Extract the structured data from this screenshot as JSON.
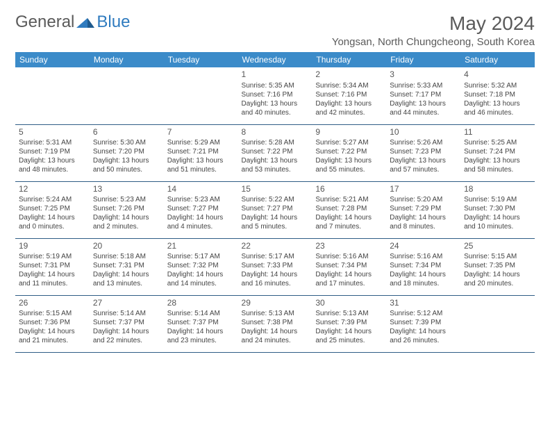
{
  "logo": {
    "word1": "General",
    "word2": "Blue"
  },
  "title": "May 2024",
  "location": "Yongsan, North Chungcheong, South Korea",
  "colors": {
    "header_bg": "#3b8bc9",
    "header_text": "#ffffff",
    "border": "#2e5c85",
    "text": "#444444",
    "title_text": "#5a5a5a"
  },
  "day_headers": [
    "Sunday",
    "Monday",
    "Tuesday",
    "Wednesday",
    "Thursday",
    "Friday",
    "Saturday"
  ],
  "weeks": [
    [
      null,
      null,
      null,
      {
        "n": "1",
        "sr": "5:35 AM",
        "ss": "7:16 PM",
        "dl": "13 hours and 40 minutes."
      },
      {
        "n": "2",
        "sr": "5:34 AM",
        "ss": "7:16 PM",
        "dl": "13 hours and 42 minutes."
      },
      {
        "n": "3",
        "sr": "5:33 AM",
        "ss": "7:17 PM",
        "dl": "13 hours and 44 minutes."
      },
      {
        "n": "4",
        "sr": "5:32 AM",
        "ss": "7:18 PM",
        "dl": "13 hours and 46 minutes."
      }
    ],
    [
      {
        "n": "5",
        "sr": "5:31 AM",
        "ss": "7:19 PM",
        "dl": "13 hours and 48 minutes."
      },
      {
        "n": "6",
        "sr": "5:30 AM",
        "ss": "7:20 PM",
        "dl": "13 hours and 50 minutes."
      },
      {
        "n": "7",
        "sr": "5:29 AM",
        "ss": "7:21 PM",
        "dl": "13 hours and 51 minutes."
      },
      {
        "n": "8",
        "sr": "5:28 AM",
        "ss": "7:22 PM",
        "dl": "13 hours and 53 minutes."
      },
      {
        "n": "9",
        "sr": "5:27 AM",
        "ss": "7:22 PM",
        "dl": "13 hours and 55 minutes."
      },
      {
        "n": "10",
        "sr": "5:26 AM",
        "ss": "7:23 PM",
        "dl": "13 hours and 57 minutes."
      },
      {
        "n": "11",
        "sr": "5:25 AM",
        "ss": "7:24 PM",
        "dl": "13 hours and 58 minutes."
      }
    ],
    [
      {
        "n": "12",
        "sr": "5:24 AM",
        "ss": "7:25 PM",
        "dl": "14 hours and 0 minutes."
      },
      {
        "n": "13",
        "sr": "5:23 AM",
        "ss": "7:26 PM",
        "dl": "14 hours and 2 minutes."
      },
      {
        "n": "14",
        "sr": "5:23 AM",
        "ss": "7:27 PM",
        "dl": "14 hours and 4 minutes."
      },
      {
        "n": "15",
        "sr": "5:22 AM",
        "ss": "7:27 PM",
        "dl": "14 hours and 5 minutes."
      },
      {
        "n": "16",
        "sr": "5:21 AM",
        "ss": "7:28 PM",
        "dl": "14 hours and 7 minutes."
      },
      {
        "n": "17",
        "sr": "5:20 AM",
        "ss": "7:29 PM",
        "dl": "14 hours and 8 minutes."
      },
      {
        "n": "18",
        "sr": "5:19 AM",
        "ss": "7:30 PM",
        "dl": "14 hours and 10 minutes."
      }
    ],
    [
      {
        "n": "19",
        "sr": "5:19 AM",
        "ss": "7:31 PM",
        "dl": "14 hours and 11 minutes."
      },
      {
        "n": "20",
        "sr": "5:18 AM",
        "ss": "7:31 PM",
        "dl": "14 hours and 13 minutes."
      },
      {
        "n": "21",
        "sr": "5:17 AM",
        "ss": "7:32 PM",
        "dl": "14 hours and 14 minutes."
      },
      {
        "n": "22",
        "sr": "5:17 AM",
        "ss": "7:33 PM",
        "dl": "14 hours and 16 minutes."
      },
      {
        "n": "23",
        "sr": "5:16 AM",
        "ss": "7:34 PM",
        "dl": "14 hours and 17 minutes."
      },
      {
        "n": "24",
        "sr": "5:16 AM",
        "ss": "7:34 PM",
        "dl": "14 hours and 18 minutes."
      },
      {
        "n": "25",
        "sr": "5:15 AM",
        "ss": "7:35 PM",
        "dl": "14 hours and 20 minutes."
      }
    ],
    [
      {
        "n": "26",
        "sr": "5:15 AM",
        "ss": "7:36 PM",
        "dl": "14 hours and 21 minutes."
      },
      {
        "n": "27",
        "sr": "5:14 AM",
        "ss": "7:37 PM",
        "dl": "14 hours and 22 minutes."
      },
      {
        "n": "28",
        "sr": "5:14 AM",
        "ss": "7:37 PM",
        "dl": "14 hours and 23 minutes."
      },
      {
        "n": "29",
        "sr": "5:13 AM",
        "ss": "7:38 PM",
        "dl": "14 hours and 24 minutes."
      },
      {
        "n": "30",
        "sr": "5:13 AM",
        "ss": "7:39 PM",
        "dl": "14 hours and 25 minutes."
      },
      {
        "n": "31",
        "sr": "5:12 AM",
        "ss": "7:39 PM",
        "dl": "14 hours and 26 minutes."
      },
      null
    ]
  ],
  "labels": {
    "sunrise": "Sunrise:",
    "sunset": "Sunset:",
    "daylight": "Daylight:"
  }
}
